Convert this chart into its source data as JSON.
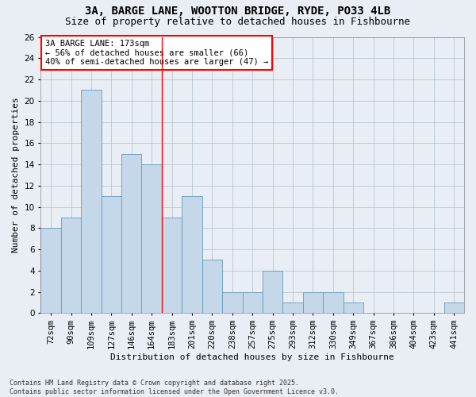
{
  "title1": "3A, BARGE LANE, WOOTTON BRIDGE, RYDE, PO33 4LB",
  "title2": "Size of property relative to detached houses in Fishbourne",
  "xlabel": "Distribution of detached houses by size in Fishbourne",
  "ylabel": "Number of detached properties",
  "categories": [
    "72sqm",
    "90sqm",
    "109sqm",
    "127sqm",
    "146sqm",
    "164sqm",
    "183sqm",
    "201sqm",
    "220sqm",
    "238sqm",
    "257sqm",
    "275sqm",
    "293sqm",
    "312sqm",
    "330sqm",
    "349sqm",
    "367sqm",
    "386sqm",
    "404sqm",
    "423sqm",
    "441sqm"
  ],
  "values": [
    8,
    9,
    21,
    11,
    15,
    14,
    9,
    11,
    5,
    2,
    2,
    4,
    1,
    2,
    2,
    1,
    0,
    0,
    0,
    0,
    1
  ],
  "bar_color": "#c5d8ea",
  "bar_edge_color": "#6699bb",
  "ref_line_x": 5.5,
  "annotation_text": "3A BARGE LANE: 173sqm\n← 56% of detached houses are smaller (66)\n40% of semi-detached houses are larger (47) →",
  "ylim": [
    0,
    26
  ],
  "yticks": [
    0,
    2,
    4,
    6,
    8,
    10,
    12,
    14,
    16,
    18,
    20,
    22,
    24,
    26
  ],
  "footnote": "Contains HM Land Registry data © Crown copyright and database right 2025.\nContains public sector information licensed under the Open Government Licence v3.0.",
  "bg_color": "#e8eef4",
  "plot_bg_color": "#e8eef4",
  "title1_fontsize": 10,
  "title2_fontsize": 9,
  "axis_label_fontsize": 8,
  "tick_fontsize": 7.5,
  "annotation_fontsize": 7.5,
  "footnote_fontsize": 6,
  "grid_color": "#b0bec8"
}
